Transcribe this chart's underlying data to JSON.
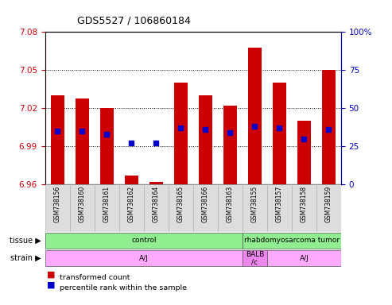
{
  "title": "GDS5527 / 106860184",
  "samples": [
    "GSM738156",
    "GSM738160",
    "GSM738161",
    "GSM738162",
    "GSM738164",
    "GSM738165",
    "GSM738166",
    "GSM738163",
    "GSM738155",
    "GSM738157",
    "GSM738158",
    "GSM738159"
  ],
  "transformed_count": [
    7.03,
    7.028,
    7.02,
    6.967,
    6.962,
    7.04,
    7.03,
    7.022,
    7.068,
    7.04,
    7.01,
    7.05
  ],
  "percentile_rank": [
    35,
    35,
    33,
    27,
    27,
    37,
    36,
    34,
    38,
    37,
    30,
    36
  ],
  "ylim_left": [
    6.96,
    7.08
  ],
  "yticks_left": [
    6.96,
    6.99,
    7.02,
    7.05,
    7.08
  ],
  "ylim_right": [
    0,
    100
  ],
  "yticks_right": [
    0,
    25,
    50,
    75,
    100
  ],
  "bar_color": "#cc0000",
  "dot_color": "#0000cc",
  "bar_base": 6.96,
  "tissue_groups": [
    {
      "label": "control",
      "start": 0,
      "end": 8,
      "color": "#90ee90"
    },
    {
      "label": "rhabdomyosarcoma tumor",
      "start": 8,
      "end": 12,
      "color": "#90ee90"
    }
  ],
  "strain_groups": [
    {
      "label": "A/J",
      "start": 0,
      "end": 8,
      "color": "#ffaaff"
    },
    {
      "label": "BALB\n/c",
      "start": 8,
      "end": 9,
      "color": "#ee88ee"
    },
    {
      "label": "A/J",
      "start": 9,
      "end": 12,
      "color": "#ffaaff"
    }
  ],
  "legend_items": [
    {
      "color": "#cc0000",
      "label": "transformed count"
    },
    {
      "color": "#0000cc",
      "label": "percentile rank within the sample"
    }
  ],
  "background_color": "#ffffff",
  "plot_bg": "#ffffff",
  "left_axis_color": "#cc0000",
  "right_axis_color": "#0000cc"
}
